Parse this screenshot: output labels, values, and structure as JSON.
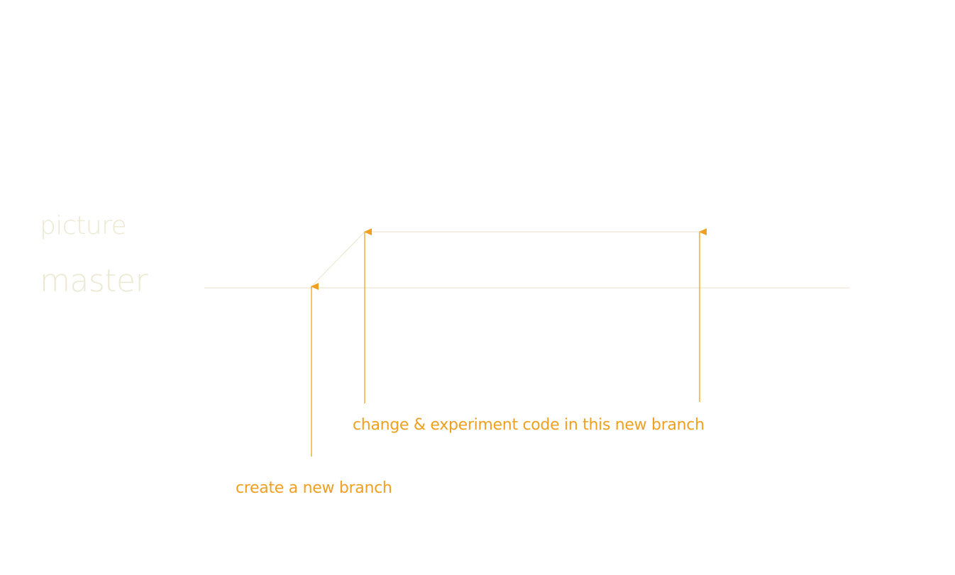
{
  "colors": {
    "branch_line": "#ece8d2",
    "branch_label": "#ece8d2",
    "annotation": "#f0a020",
    "background": "#ffffff"
  },
  "branches": {
    "picture_label": "picture",
    "master_label": "master"
  },
  "annotations": {
    "change_text": "change & experiment code in this new branch",
    "create_text": "create a new branch"
  }
}
